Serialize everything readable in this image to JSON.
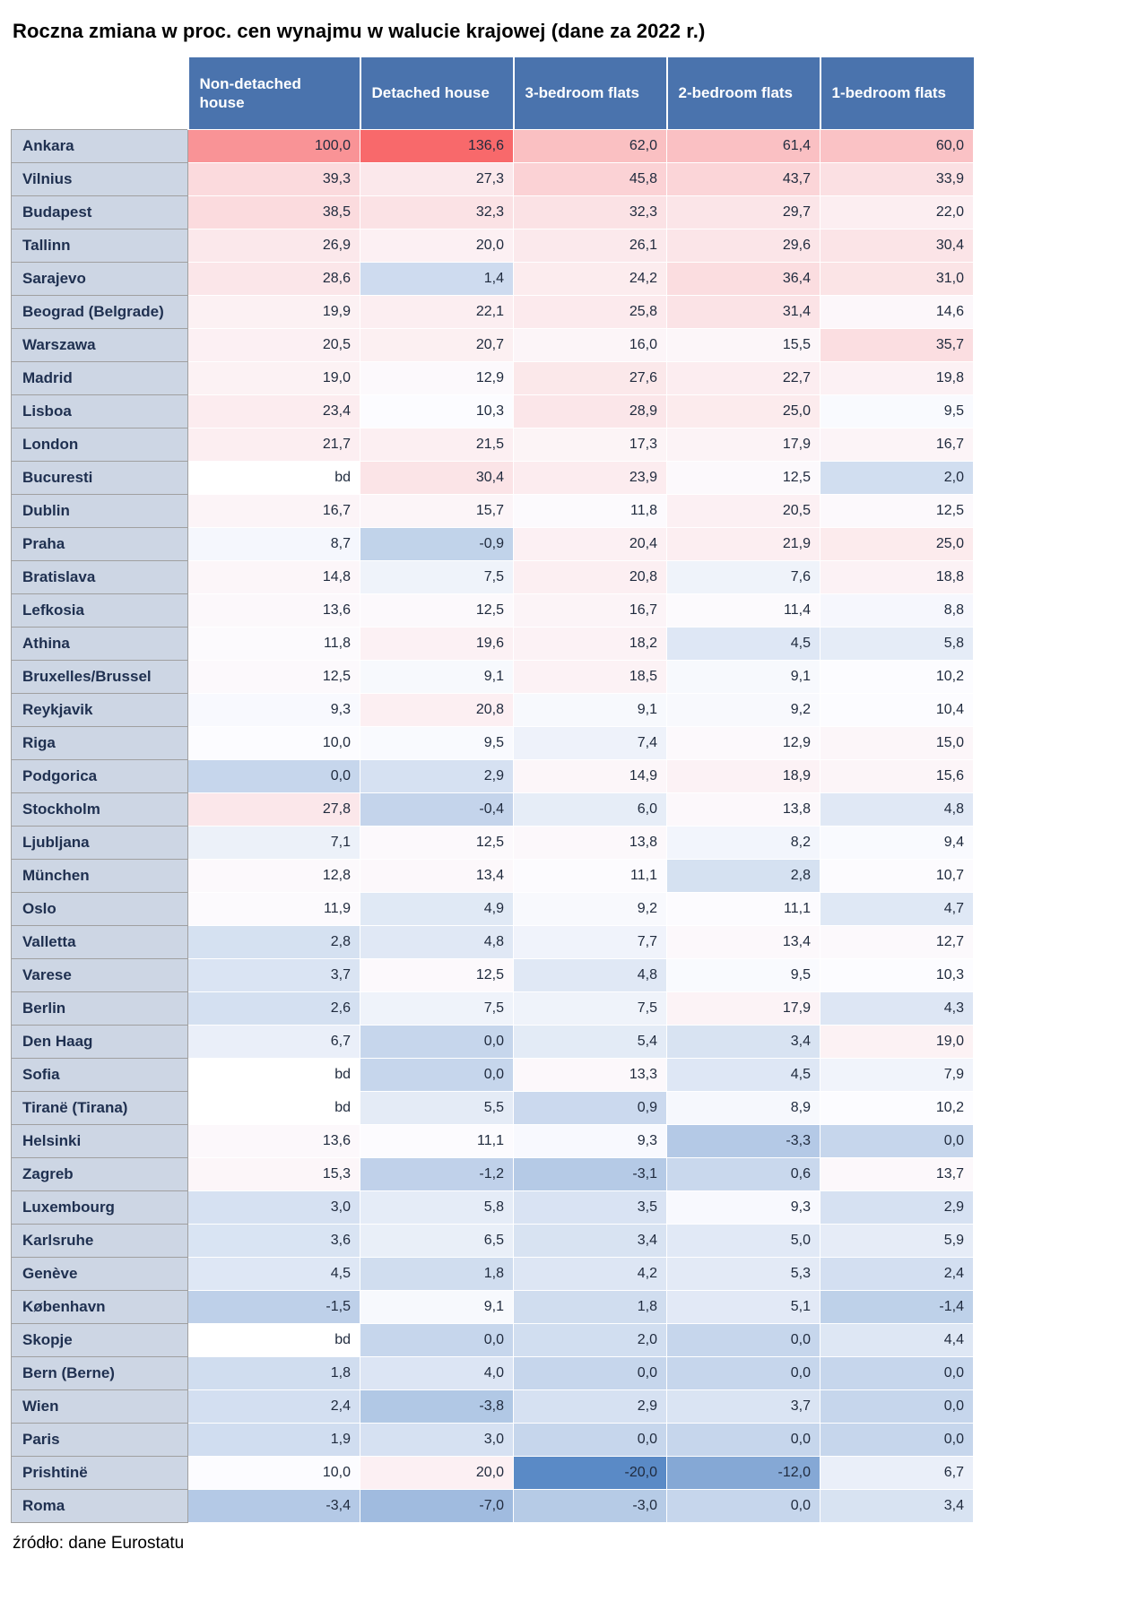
{
  "title": "Roczna zmiana w proc. cen wynajmu w walucie krajowej (dane za 2022 r.)",
  "source_note": "źródło: dane Eurostatu",
  "no_data_label": "bd",
  "colors": {
    "header_bg": "#4a73ad",
    "header_text": "#ffffff",
    "label_bg": "#cdd6e4",
    "label_border": "#a0a0a0",
    "label_text": "#1f3050",
    "value_text": "#1f2a3d",
    "scale_min": "#5A8AC6",
    "scale_mid": "#FCFCFF",
    "scale_max": "#F8696B"
  },
  "chart_data": {
    "type": "heatmap",
    "title": "Roczna zmiana w proc. cen wynajmu w walucie krajowej (dane za 2022 r.)",
    "value_unit": "percent",
    "decimal_separator": ",",
    "no_data": "bd",
    "color_scale": {
      "min_color": "#5A8AC6",
      "mid_color": "#FCFCFF",
      "max_color": "#F8696B",
      "midpoint": "median"
    },
    "columns": [
      "Non-detached house",
      "Detached house",
      "3-bedroom flats",
      "2-bedroom flats",
      "1-bedroom flats"
    ],
    "rows": [
      {
        "city": "Ankara",
        "values": [
          100.0,
          136.6,
          62.0,
          61.4,
          60.0
        ]
      },
      {
        "city": "Vilnius",
        "values": [
          39.3,
          27.3,
          45.8,
          43.7,
          33.9
        ]
      },
      {
        "city": "Budapest",
        "values": [
          38.5,
          32.3,
          32.3,
          29.7,
          22.0
        ]
      },
      {
        "city": "Tallinn",
        "values": [
          26.9,
          20.0,
          26.1,
          29.6,
          30.4
        ]
      },
      {
        "city": "Sarajevo",
        "values": [
          28.6,
          1.4,
          24.2,
          36.4,
          31.0
        ]
      },
      {
        "city": "Beograd (Belgrade)",
        "values": [
          19.9,
          22.1,
          25.8,
          31.4,
          14.6
        ]
      },
      {
        "city": "Warszawa",
        "values": [
          20.5,
          20.7,
          16.0,
          15.5,
          35.7
        ]
      },
      {
        "city": "Madrid",
        "values": [
          19.0,
          12.9,
          27.6,
          22.7,
          19.8
        ]
      },
      {
        "city": "Lisboa",
        "values": [
          23.4,
          10.3,
          28.9,
          25.0,
          9.5
        ]
      },
      {
        "city": "London",
        "values": [
          21.7,
          21.5,
          17.3,
          17.9,
          16.7
        ]
      },
      {
        "city": "Bucuresti",
        "values": [
          null,
          30.4,
          23.9,
          12.5,
          2.0
        ]
      },
      {
        "city": "Dublin",
        "values": [
          16.7,
          15.7,
          11.8,
          20.5,
          12.5
        ]
      },
      {
        "city": "Praha",
        "values": [
          8.7,
          -0.9,
          20.4,
          21.9,
          25.0
        ]
      },
      {
        "city": "Bratislava",
        "values": [
          14.8,
          7.5,
          20.8,
          7.6,
          18.8
        ]
      },
      {
        "city": "Lefkosia",
        "values": [
          13.6,
          12.5,
          16.7,
          11.4,
          8.8
        ]
      },
      {
        "city": "Athina",
        "values": [
          11.8,
          19.6,
          18.2,
          4.5,
          5.8
        ]
      },
      {
        "city": "Bruxelles/Brussel",
        "values": [
          12.5,
          9.1,
          18.5,
          9.1,
          10.2
        ]
      },
      {
        "city": "Reykjavik",
        "values": [
          9.3,
          20.8,
          9.1,
          9.2,
          10.4
        ]
      },
      {
        "city": "Riga",
        "values": [
          10.0,
          9.5,
          7.4,
          12.9,
          15.0
        ]
      },
      {
        "city": "Podgorica",
        "values": [
          0.0,
          2.9,
          14.9,
          18.9,
          15.6
        ]
      },
      {
        "city": "Stockholm",
        "values": [
          27.8,
          -0.4,
          6.0,
          13.8,
          4.8
        ]
      },
      {
        "city": "Ljubljana",
        "values": [
          7.1,
          12.5,
          13.8,
          8.2,
          9.4
        ]
      },
      {
        "city": "München",
        "values": [
          12.8,
          13.4,
          11.1,
          2.8,
          10.7
        ]
      },
      {
        "city": "Oslo",
        "values": [
          11.9,
          4.9,
          9.2,
          11.1,
          4.7
        ]
      },
      {
        "city": "Valletta",
        "values": [
          2.8,
          4.8,
          7.7,
          13.4,
          12.7
        ]
      },
      {
        "city": "Varese",
        "values": [
          3.7,
          12.5,
          4.8,
          9.5,
          10.3
        ]
      },
      {
        "city": "Berlin",
        "values": [
          2.6,
          7.5,
          7.5,
          17.9,
          4.3
        ]
      },
      {
        "city": "Den Haag",
        "values": [
          6.7,
          0.0,
          5.4,
          3.4,
          19.0
        ]
      },
      {
        "city": "Sofia",
        "values": [
          null,
          0.0,
          13.3,
          4.5,
          7.9
        ]
      },
      {
        "city": "Tiranë (Tirana)",
        "values": [
          null,
          5.5,
          0.9,
          8.9,
          10.2
        ]
      },
      {
        "city": "Helsinki",
        "values": [
          13.6,
          11.1,
          9.3,
          -3.3,
          0.0
        ]
      },
      {
        "city": "Zagreb",
        "values": [
          15.3,
          -1.2,
          -3.1,
          0.6,
          13.7
        ]
      },
      {
        "city": "Luxembourg",
        "values": [
          3.0,
          5.8,
          3.5,
          9.3,
          2.9
        ]
      },
      {
        "city": "Karlsruhe",
        "values": [
          3.6,
          6.5,
          3.4,
          5.0,
          5.9
        ]
      },
      {
        "city": "Genève",
        "values": [
          4.5,
          1.8,
          4.2,
          5.3,
          2.4
        ]
      },
      {
        "city": "København",
        "values": [
          -1.5,
          9.1,
          1.8,
          5.1,
          -1.4
        ]
      },
      {
        "city": "Skopje",
        "values": [
          null,
          0.0,
          2.0,
          0.0,
          4.4
        ]
      },
      {
        "city": "Bern (Berne)",
        "values": [
          1.8,
          4.0,
          0.0,
          0.0,
          0.0
        ]
      },
      {
        "city": "Wien",
        "values": [
          2.4,
          -3.8,
          2.9,
          3.7,
          0.0
        ]
      },
      {
        "city": "Paris",
        "values": [
          1.9,
          3.0,
          0.0,
          0.0,
          0.0
        ]
      },
      {
        "city": "Prishtinë",
        "values": [
          10.0,
          20.0,
          -20.0,
          -12.0,
          6.7
        ]
      },
      {
        "city": "Roma",
        "values": [
          -3.4,
          -7.0,
          -3.0,
          0.0,
          3.4
        ]
      }
    ]
  }
}
